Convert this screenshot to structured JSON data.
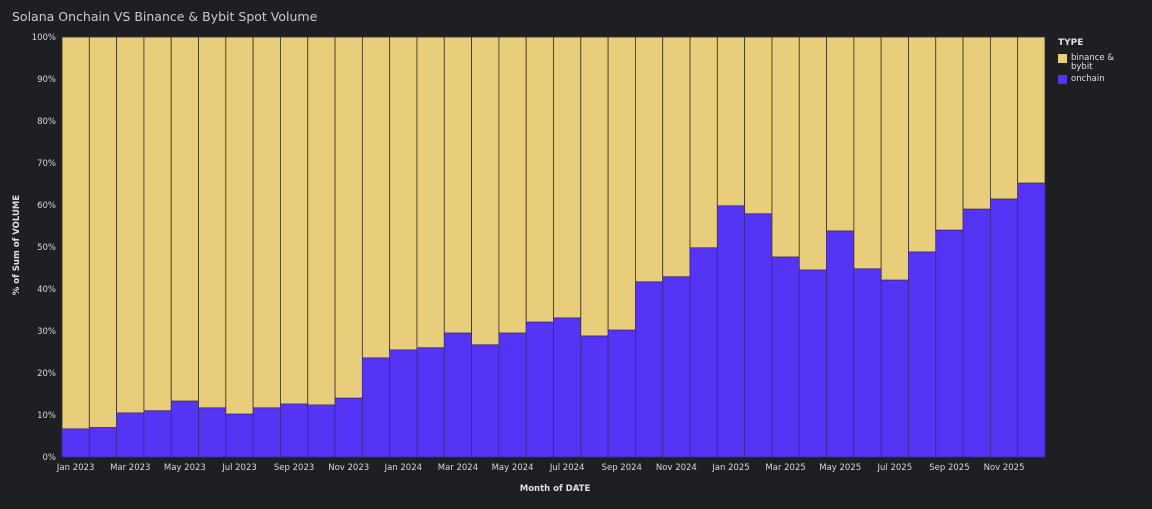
{
  "chart_data": {
    "type": "bar",
    "stacked": "percent",
    "title": "Solana Onchain VS Binance & Bybit Spot Volume",
    "xlabel": "Month of DATE",
    "ylabel": "% of Sum of VOLUME",
    "ylim": [
      0,
      100
    ],
    "yticks": [
      "0%",
      "10%",
      "20%",
      "30%",
      "40%",
      "50%",
      "60%",
      "70%",
      "80%",
      "90%",
      "100%"
    ],
    "xtick_labels": [
      "Jan 2023",
      "Mar 2023",
      "May 2023",
      "Jul 2023",
      "Sep 2023",
      "Nov 2023",
      "Jan 2024",
      "Mar 2024",
      "May 2024",
      "Jul 2024",
      "Sep 2024",
      "Nov 2024",
      "Jan 2025",
      "Mar 2025",
      "May 2025",
      "Jul 2025",
      "Sep 2025",
      "Nov 2025"
    ],
    "categories": [
      "2023-01",
      "2023-02",
      "2023-03",
      "2023-04",
      "2023-05",
      "2023-06",
      "2023-07",
      "2023-08",
      "2023-09",
      "2023-10",
      "2023-11",
      "2023-12",
      "2024-01",
      "2024-02",
      "2024-03",
      "2024-04",
      "2024-05",
      "2024-06",
      "2024-07",
      "2024-08",
      "2024-09",
      "2024-10",
      "2024-11",
      "2024-12",
      "2025-01",
      "2025-02",
      "2025-03",
      "2025-04",
      "2025-05",
      "2025-06",
      "2025-07",
      "2025-08",
      "2025-09",
      "2025-10",
      "2025-11",
      "2025-12"
    ],
    "legend_title": "TYPE",
    "legend_position": "right",
    "series": [
      {
        "name": "onchain",
        "color": "#5534f5",
        "values": [
          6.7,
          7.0,
          10.5,
          11.0,
          13.3,
          11.7,
          10.2,
          11.7,
          12.6,
          12.4,
          14.0,
          23.6,
          25.5,
          26.0,
          29.5,
          26.7,
          29.5,
          32.1,
          33.1,
          28.8,
          30.2,
          41.7,
          42.9,
          49.8,
          59.8,
          57.9,
          47.6,
          44.5,
          53.8,
          44.8,
          42.1,
          48.8,
          54.0,
          59.0,
          61.4,
          65.2
        ]
      },
      {
        "name": "binance & bybit",
        "color": "#e8cd7a",
        "values": [
          93.3,
          93.0,
          89.5,
          89.0,
          86.7,
          88.3,
          89.8,
          88.3,
          87.4,
          87.6,
          86.0,
          76.4,
          74.5,
          74.0,
          70.5,
          73.3,
          70.5,
          67.9,
          66.9,
          71.2,
          69.8,
          58.3,
          57.1,
          50.2,
          40.2,
          42.1,
          52.4,
          55.5,
          46.2,
          55.2,
          57.9,
          51.2,
          46.0,
          41.0,
          38.6,
          34.8
        ]
      }
    ],
    "legend_entries": [
      "binance & bybit",
      "onchain"
    ]
  }
}
